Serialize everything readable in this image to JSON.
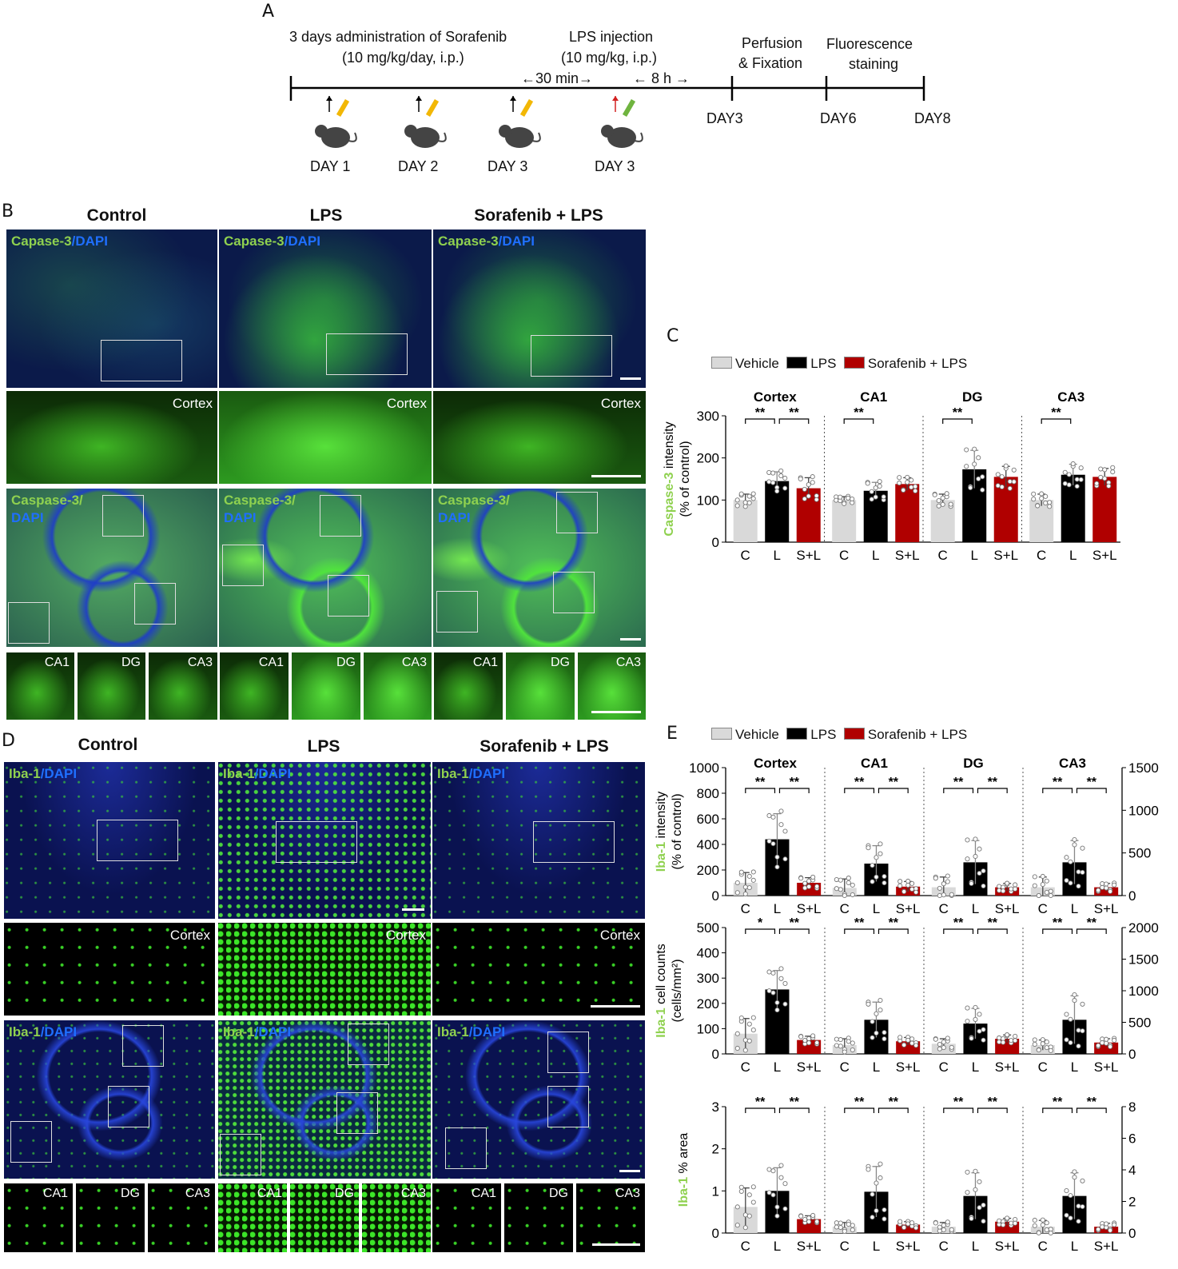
{
  "panel_labels": {
    "a": "A",
    "b": "B",
    "c": "C",
    "d": "D",
    "e": "E"
  },
  "timeline": {
    "sorafenib_line1": "3 days administration of Sorafenib",
    "sorafenib_line2": "(10 mg/kg/day, i.p.)",
    "lps_line1": "LPS injection",
    "lps_line2": "(10 mg/kg, i.p.)",
    "interval_30": "←30 min→",
    "interval_8h": "← 8 h →",
    "perfusion_line1": "Perfusion",
    "perfusion_line2": "& Fixation",
    "fluor_line1": "Fluorescence",
    "fluor_line2": "staining",
    "days": [
      "DAY 1",
      "DAY 2",
      "DAY 3",
      "DAY 3"
    ],
    "markers": [
      "DAY3",
      "DAY6",
      "DAY8"
    ],
    "colors": {
      "sorafenib_syringe": "#f2b705",
      "lps_syringe": "#6fb43f",
      "lps_arrow": "#d22020"
    }
  },
  "groups": [
    "Control",
    "LPS",
    "Sorafenib + LPS"
  ],
  "caspase": {
    "label_green": "Capase-3",
    "label_sep": "/",
    "label_blue": "DAPI",
    "hippo_green": "Caspase-3/",
    "hippo_blue": "DAPI",
    "cortex": "Cortex",
    "subregions": [
      "CA1",
      "DG",
      "CA3"
    ]
  },
  "iba": {
    "label_green": "Iba-1",
    "label_sep": "/",
    "label_blue": "DAPI",
    "cortex": "Cortex",
    "subregions": [
      "CA1",
      "DG",
      "CA3"
    ]
  },
  "legend": {
    "vehicle": "Vehicle",
    "lps": "LPS",
    "sorlps": "Sorafenib + LPS"
  },
  "colors": {
    "vehicle": "#d9d9d9",
    "lps": "#000000",
    "sorlps": "#b00000",
    "ylabel_green": "#8fd14f",
    "dapi_blue": "#1f6fff"
  },
  "chart_data": [
    {
      "type": "bar",
      "panel": "C",
      "regions": [
        "Cortex",
        "CA1",
        "DG",
        "CA3"
      ],
      "categories": [
        "C",
        "L",
        "S+L"
      ],
      "ylabel_green": "Caspase-3",
      "ylabel_rest": " intensity",
      "ylabel_sub": "(% of control)",
      "ylim": [
        0,
        300
      ],
      "yticks": [
        0,
        100,
        200,
        300
      ],
      "values": [
        [
          100,
          145,
          128
        ],
        [
          100,
          122,
          138
        ],
        [
          100,
          173,
          155
        ],
        [
          100,
          160,
          155
        ]
      ],
      "errors": [
        [
          14,
          22,
          25
        ],
        [
          8,
          20,
          15
        ],
        [
          14,
          45,
          25
        ],
        [
          14,
          25,
          20
        ]
      ],
      "sig": [
        [
          "**",
          "**"
        ],
        [
          "**",
          ""
        ],
        [
          "**",
          ""
        ],
        [
          "**",
          ""
        ]
      ]
    },
    {
      "type": "bar",
      "panel": "E1",
      "regions": [
        "Cortex",
        "CA1",
        "DG",
        "CA3"
      ],
      "categories": [
        "C",
        "L",
        "S+L"
      ],
      "ylabel_green": "Iba-1",
      "ylabel_rest": " intensity",
      "ylabel_sub": "(% of control)",
      "ylim": [
        0,
        1000
      ],
      "yticks": [
        0,
        200,
        400,
        600,
        800,
        1000
      ],
      "y2lim": [
        0,
        1500
      ],
      "y2ticks": [
        0,
        500,
        1000,
        1500
      ],
      "values": [
        [
          100,
          440,
          100
        ],
        [
          60,
          250,
          70
        ],
        [
          65,
          260,
          65
        ],
        [
          65,
          260,
          65
        ]
      ],
      "errors": [
        [
          80,
          200,
          40
        ],
        [
          70,
          140,
          40
        ],
        [
          80,
          170,
          30
        ],
        [
          80,
          170,
          30
        ]
      ],
      "sig": [
        [
          "**",
          "**"
        ],
        [
          "**",
          "**"
        ],
        [
          "**",
          "**"
        ],
        [
          "**",
          "**"
        ]
      ]
    },
    {
      "type": "bar",
      "panel": "E2",
      "regions": [
        "Cortex",
        "CA1",
        "DG",
        "CA3"
      ],
      "categories": [
        "C",
        "L",
        "S+L"
      ],
      "ylabel_green": "Iba-1",
      "ylabel_rest": " cell counts",
      "ylabel_sub": "(cells/mm²)",
      "ylim": [
        0,
        500
      ],
      "yticks": [
        0,
        100,
        200,
        300,
        400,
        500
      ],
      "y2lim": [
        0,
        2000
      ],
      "y2ticks": [
        0,
        500,
        1000,
        1500,
        2000
      ],
      "values": [
        [
          80,
          255,
          55
        ],
        [
          35,
          135,
          50
        ],
        [
          40,
          120,
          60
        ],
        [
          35,
          135,
          45
        ]
      ],
      "errors": [
        [
          60,
          75,
          15
        ],
        [
          25,
          70,
          15
        ],
        [
          20,
          60,
          15
        ],
        [
          20,
          95,
          15
        ]
      ],
      "sig": [
        [
          "*",
          "**"
        ],
        [
          "**",
          "**"
        ],
        [
          "**",
          "**"
        ],
        [
          "**",
          "**"
        ]
      ]
    },
    {
      "type": "bar",
      "panel": "E3",
      "regions": [
        "Cortex",
        "CA1",
        "DG",
        "CA3"
      ],
      "categories": [
        "C",
        "L",
        "S+L"
      ],
      "ylabel_green": "Iba-1",
      "ylabel_rest": " % area",
      "ylabel_sub": "",
      "ylim": [
        0,
        3
      ],
      "yticks": [
        0,
        1,
        2,
        3
      ],
      "y2lim": [
        0,
        8
      ],
      "y2ticks": [
        0,
        2,
        4,
        6,
        8
      ],
      "values": [
        [
          0.62,
          1.0,
          0.33
        ],
        [
          0.15,
          0.98,
          0.2
        ],
        [
          0.15,
          0.88,
          0.27
        ],
        [
          0.15,
          0.88,
          0.15
        ]
      ],
      "errors": [
        [
          0.45,
          0.55,
          0.08
        ],
        [
          0.1,
          0.6,
          0.07
        ],
        [
          0.1,
          0.55,
          0.08
        ],
        [
          0.15,
          0.55,
          0.08
        ]
      ],
      "sig": [
        [
          "**",
          "**"
        ],
        [
          "**",
          "**"
        ],
        [
          "**",
          "**"
        ],
        [
          "**",
          "**"
        ]
      ]
    }
  ]
}
